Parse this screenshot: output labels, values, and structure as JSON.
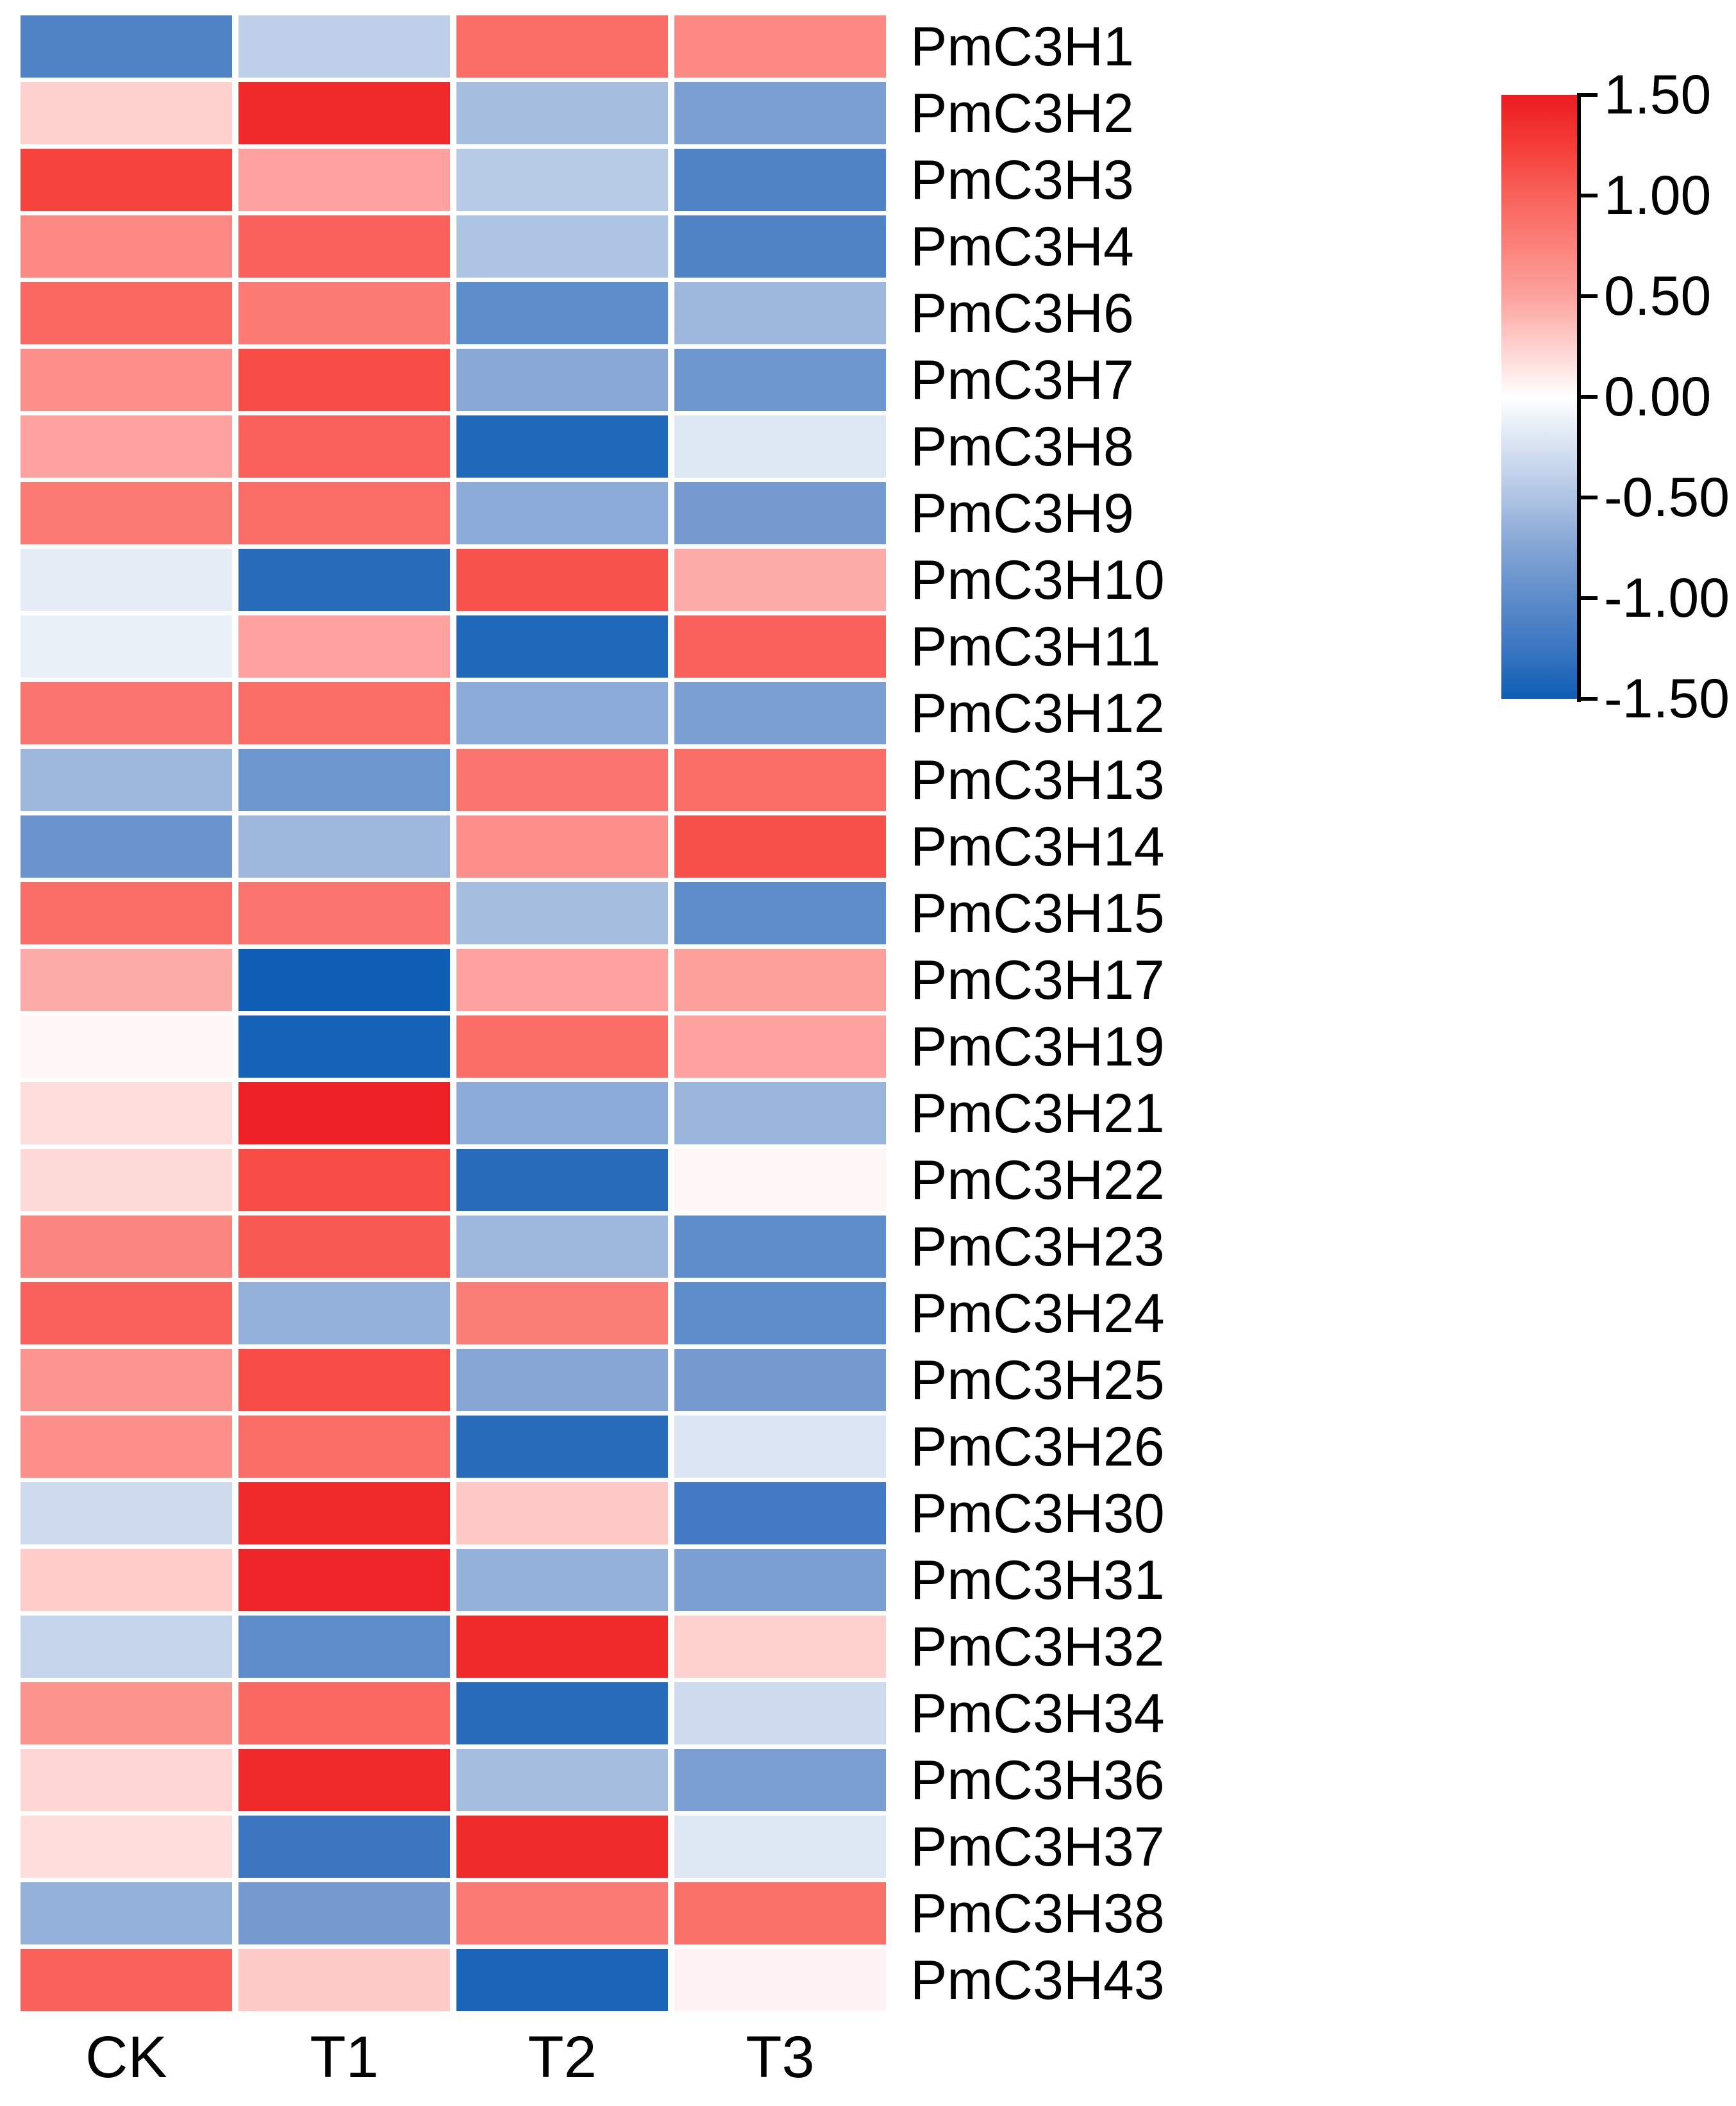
{
  "figure": {
    "background": "#ffffff",
    "text_color": "#000000"
  },
  "chart_data": {
    "type": "heatmap",
    "title": "",
    "xlabel": "",
    "ylabel": "",
    "columns": [
      "CK",
      "T1",
      "T2",
      "T3"
    ],
    "rows": [
      "PmC3H1",
      "PmC3H2",
      "PmC3H3",
      "PmC3H4",
      "PmC3H6",
      "PmC3H7",
      "PmC3H8",
      "PmC3H9",
      "PmC3H10",
      "PmC3H11",
      "PmC3H12",
      "PmC3H13",
      "PmC3H14",
      "PmC3H15",
      "PmC3H17",
      "PmC3H19",
      "PmC3H21",
      "PmC3H22",
      "PmC3H23",
      "PmC3H24",
      "PmC3H25",
      "PmC3H26",
      "PmC3H30",
      "PmC3H31",
      "PmC3H32",
      "PmC3H34",
      "PmC3H36",
      "PmC3H37",
      "PmC3H38",
      "PmC3H43"
    ],
    "values": [
      [
        -1.1,
        -0.4,
        0.9,
        0.7
      ],
      [
        0.25,
        1.4,
        -0.55,
        -0.8
      ],
      [
        1.2,
        0.5,
        -0.45,
        -1.1
      ],
      [
        0.7,
        1.0,
        -0.5,
        -1.1
      ],
      [
        0.95,
        0.8,
        -1.0,
        -0.6
      ],
      [
        0.65,
        1.15,
        -0.72,
        -0.9
      ],
      [
        0.5,
        1.0,
        -1.4,
        -0.2
      ],
      [
        0.8,
        0.9,
        -0.7,
        -0.85
      ],
      [
        -0.15,
        -1.35,
        1.1,
        0.45
      ],
      [
        -0.12,
        0.5,
        -1.4,
        1.0
      ],
      [
        0.85,
        0.9,
        -0.7,
        -0.8
      ],
      [
        -0.6,
        -0.9,
        0.85,
        0.9
      ],
      [
        -0.92,
        -0.6,
        0.65,
        1.12
      ],
      [
        0.9,
        0.85,
        -0.55,
        -1.0
      ],
      [
        0.45,
        -1.5,
        0.5,
        0.52
      ],
      [
        0.05,
        -1.45,
        0.9,
        0.5
      ],
      [
        0.18,
        1.45,
        -0.7,
        -0.62
      ],
      [
        0.2,
        1.15,
        -1.35,
        0.05
      ],
      [
        0.72,
        1.05,
        -0.6,
        -1.0
      ],
      [
        1.0,
        -0.65,
        0.78,
        -1.0
      ],
      [
        0.6,
        1.15,
        -0.73,
        -0.85
      ],
      [
        0.65,
        0.9,
        -1.35,
        -0.22
      ],
      [
        -0.3,
        1.4,
        0.3,
        -1.2
      ],
      [
        0.27,
        1.42,
        -0.65,
        -0.8
      ],
      [
        -0.35,
        -1.0,
        1.4,
        0.25
      ],
      [
        0.62,
        0.95,
        -1.35,
        -0.3
      ],
      [
        0.22,
        1.4,
        -0.55,
        -0.8
      ],
      [
        0.18,
        -1.25,
        1.38,
        -0.2
      ],
      [
        -0.65,
        -0.85,
        0.8,
        0.88
      ],
      [
        1.0,
        0.28,
        -1.43,
        0.06
      ]
    ],
    "value_domain": [
      -1.5,
      1.5
    ],
    "grid": "white gaps between cells",
    "colorbar": {
      "position": "right",
      "orientation": "vertical",
      "tick_labels": [
        "1.50",
        "1.00",
        "0.50",
        "0.00",
        "-0.50",
        "-1.00",
        "-1.50"
      ],
      "tick_values": [
        1.5,
        1.0,
        0.5,
        0.0,
        -0.5,
        -1.0,
        -1.5
      ],
      "gradient_anchors": [
        {
          "v": -1.5,
          "color": "#0d5eb4"
        },
        {
          "v": -1.25,
          "color": "#3c76c1"
        },
        {
          "v": -1.0,
          "color": "#5d8cca"
        },
        {
          "v": -0.75,
          "color": "#83a4d4"
        },
        {
          "v": -0.5,
          "color": "#aec4e3"
        },
        {
          "v": -0.25,
          "color": "#d6e1f1"
        },
        {
          "v": 0.0,
          "color": "#ffffff"
        },
        {
          "v": 0.25,
          "color": "#fed1ce"
        },
        {
          "v": 0.5,
          "color": "#fda29e"
        },
        {
          "v": 0.75,
          "color": "#fb827b"
        },
        {
          "v": 1.0,
          "color": "#f9615a"
        },
        {
          "v": 1.25,
          "color": "#f53c37"
        },
        {
          "v": 1.5,
          "color": "#ec1c22"
        }
      ]
    }
  }
}
